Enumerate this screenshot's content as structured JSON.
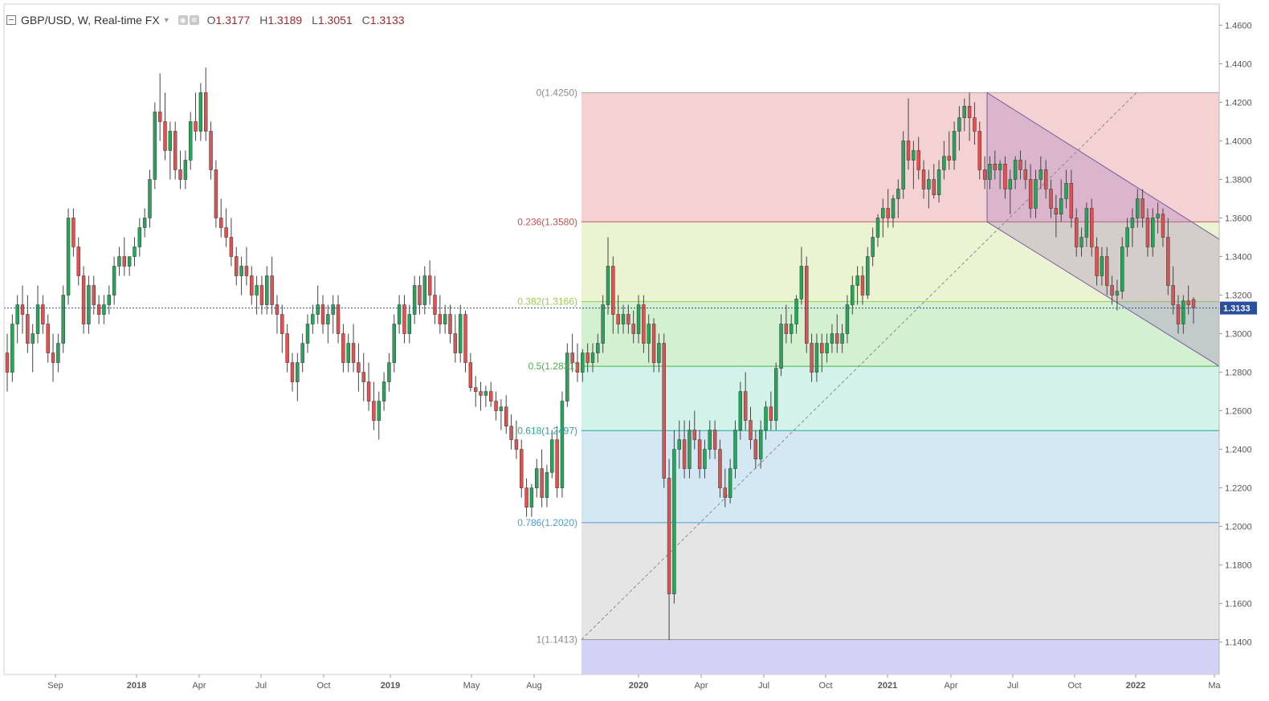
{
  "header": {
    "symbol": "GBP/USD, W, Real-time FX",
    "open_label": "O",
    "open": "1.3177",
    "high_label": "H",
    "high": "1.3189",
    "low_label": "L",
    "low": "1.3051",
    "close_label": "C",
    "close": "1.3133"
  },
  "chart_data": {
    "type": "candlestick",
    "instrument": "GBP/USD",
    "timeframe": "W",
    "ylim": [
      1.1232,
      1.471
    ],
    "y_ticks": [
      "1.4600",
      "1.4400",
      "1.4200",
      "1.4000",
      "1.3800",
      "1.3600",
      "1.3400",
      "1.3200",
      "1.3000",
      "1.2800",
      "1.2600",
      "1.2400",
      "1.2200",
      "1.2000",
      "1.1800",
      "1.1600",
      "1.1400"
    ],
    "x_ticks": [
      "Sep",
      "2018",
      "Apr",
      "Jul",
      "Oct",
      "2019",
      "May",
      "Aug",
      "2020",
      "Apr",
      "Jul",
      "Oct",
      "2021",
      "Apr",
      "Jul",
      "Oct",
      "2022",
      "Ma"
    ],
    "last_price": "1.3133",
    "candles": [
      [
        1.29,
        1.3,
        1.27,
        1.28
      ],
      [
        1.28,
        1.31,
        1.275,
        1.305
      ],
      [
        1.305,
        1.32,
        1.295,
        1.315
      ],
      [
        1.315,
        1.325,
        1.3,
        1.31
      ],
      [
        1.31,
        1.32,
        1.29,
        1.295
      ],
      [
        1.295,
        1.305,
        1.28,
        1.3
      ],
      [
        1.3,
        1.325,
        1.295,
        1.315
      ],
      [
        1.315,
        1.32,
        1.3,
        1.305
      ],
      [
        1.305,
        1.31,
        1.285,
        1.29
      ],
      [
        1.29,
        1.3,
        1.275,
        1.285
      ],
      [
        1.285,
        1.3,
        1.28,
        1.295
      ],
      [
        1.295,
        1.325,
        1.29,
        1.32
      ],
      [
        1.32,
        1.365,
        1.315,
        1.36
      ],
      [
        1.36,
        1.365,
        1.34,
        1.345
      ],
      [
        1.345,
        1.35,
        1.325,
        1.33
      ],
      [
        1.33,
        1.335,
        1.3,
        1.305
      ],
      [
        1.305,
        1.33,
        1.3,
        1.325
      ],
      [
        1.325,
        1.33,
        1.31,
        1.315
      ],
      [
        1.315,
        1.32,
        1.305,
        1.31
      ],
      [
        1.31,
        1.32,
        1.305,
        1.315
      ],
      [
        1.315,
        1.325,
        1.31,
        1.32
      ],
      [
        1.32,
        1.34,
        1.315,
        1.335
      ],
      [
        1.335,
        1.345,
        1.33,
        1.34
      ],
      [
        1.34,
        1.35,
        1.33,
        1.335
      ],
      [
        1.335,
        1.34,
        1.33,
        1.34
      ],
      [
        1.34,
        1.35,
        1.335,
        1.345
      ],
      [
        1.345,
        1.36,
        1.34,
        1.355
      ],
      [
        1.355,
        1.365,
        1.35,
        1.36
      ],
      [
        1.36,
        1.385,
        1.355,
        1.38
      ],
      [
        1.38,
        1.42,
        1.375,
        1.415
      ],
      [
        1.415,
        1.435,
        1.4,
        1.41
      ],
      [
        1.41,
        1.425,
        1.39,
        1.395
      ],
      [
        1.395,
        1.41,
        1.38,
        1.405
      ],
      [
        1.405,
        1.41,
        1.38,
        1.385
      ],
      [
        1.385,
        1.395,
        1.375,
        1.38
      ],
      [
        1.38,
        1.395,
        1.375,
        1.39
      ],
      [
        1.39,
        1.415,
        1.385,
        1.41
      ],
      [
        1.41,
        1.425,
        1.4,
        1.405
      ],
      [
        1.405,
        1.43,
        1.4,
        1.425
      ],
      [
        1.425,
        1.438,
        1.4,
        1.405
      ],
      [
        1.405,
        1.41,
        1.38,
        1.385
      ],
      [
        1.385,
        1.39,
        1.355,
        1.36
      ],
      [
        1.36,
        1.37,
        1.35,
        1.355
      ],
      [
        1.355,
        1.365,
        1.345,
        1.35
      ],
      [
        1.35,
        1.36,
        1.335,
        1.34
      ],
      [
        1.34,
        1.345,
        1.325,
        1.33
      ],
      [
        1.33,
        1.34,
        1.32,
        1.335
      ],
      [
        1.335,
        1.345,
        1.325,
        1.33
      ],
      [
        1.33,
        1.335,
        1.315,
        1.32
      ],
      [
        1.32,
        1.33,
        1.31,
        1.325
      ],
      [
        1.325,
        1.33,
        1.31,
        1.315
      ],
      [
        1.315,
        1.335,
        1.31,
        1.33
      ],
      [
        1.33,
        1.34,
        1.31,
        1.315
      ],
      [
        1.315,
        1.32,
        1.3,
        1.31
      ],
      [
        1.31,
        1.315,
        1.29,
        1.3
      ],
      [
        1.3,
        1.305,
        1.28,
        1.285
      ],
      [
        1.285,
        1.29,
        1.27,
        1.275
      ],
      [
        1.275,
        1.29,
        1.265,
        1.285
      ],
      [
        1.285,
        1.3,
        1.28,
        1.295
      ],
      [
        1.295,
        1.31,
        1.29,
        1.305
      ],
      [
        1.305,
        1.315,
        1.3,
        1.31
      ],
      [
        1.31,
        1.325,
        1.305,
        1.315
      ],
      [
        1.315,
        1.32,
        1.3,
        1.305
      ],
      [
        1.305,
        1.315,
        1.295,
        1.31
      ],
      [
        1.31,
        1.32,
        1.3,
        1.315
      ],
      [
        1.315,
        1.32,
        1.295,
        1.3
      ],
      [
        1.3,
        1.305,
        1.28,
        1.285
      ],
      [
        1.285,
        1.3,
        1.28,
        1.295
      ],
      [
        1.295,
        1.305,
        1.28,
        1.285
      ],
      [
        1.285,
        1.295,
        1.27,
        1.28
      ],
      [
        1.28,
        1.29,
        1.265,
        1.275
      ],
      [
        1.275,
        1.285,
        1.26,
        1.265
      ],
      [
        1.265,
        1.275,
        1.25,
        1.255
      ],
      [
        1.255,
        1.27,
        1.245,
        1.265
      ],
      [
        1.265,
        1.28,
        1.26,
        1.275
      ],
      [
        1.275,
        1.29,
        1.27,
        1.285
      ],
      [
        1.285,
        1.31,
        1.28,
        1.305
      ],
      [
        1.305,
        1.32,
        1.3,
        1.315
      ],
      [
        1.315,
        1.32,
        1.295,
        1.3
      ],
      [
        1.3,
        1.315,
        1.295,
        1.31
      ],
      [
        1.31,
        1.33,
        1.305,
        1.325
      ],
      [
        1.325,
        1.33,
        1.31,
        1.315
      ],
      [
        1.315,
        1.335,
        1.31,
        1.33
      ],
      [
        1.33,
        1.338,
        1.315,
        1.32
      ],
      [
        1.32,
        1.33,
        1.305,
        1.31
      ],
      [
        1.31,
        1.32,
        1.3,
        1.305
      ],
      [
        1.305,
        1.315,
        1.3,
        1.31
      ],
      [
        1.31,
        1.315,
        1.295,
        1.3
      ],
      [
        1.3,
        1.31,
        1.285,
        1.29
      ],
      [
        1.29,
        1.315,
        1.285,
        1.31
      ],
      [
        1.31,
        1.312,
        1.28,
        1.285
      ],
      [
        1.285,
        1.29,
        1.27,
        1.272
      ],
      [
        1.272,
        1.278,
        1.262,
        1.27
      ],
      [
        1.27,
        1.275,
        1.26,
        1.268
      ],
      [
        1.268,
        1.273,
        1.262,
        1.27
      ],
      [
        1.27,
        1.275,
        1.262,
        1.265
      ],
      [
        1.265,
        1.27,
        1.255,
        1.26
      ],
      [
        1.26,
        1.266,
        1.25,
        1.262
      ],
      [
        1.262,
        1.268,
        1.248,
        1.252
      ],
      [
        1.252,
        1.258,
        1.24,
        1.245
      ],
      [
        1.245,
        1.255,
        1.235,
        1.24
      ],
      [
        1.24,
        1.245,
        1.215,
        1.22
      ],
      [
        1.22,
        1.225,
        1.205,
        1.21
      ],
      [
        1.21,
        1.222,
        1.205,
        1.22
      ],
      [
        1.22,
        1.235,
        1.215,
        1.23
      ],
      [
        1.23,
        1.24,
        1.21,
        1.215
      ],
      [
        1.215,
        1.232,
        1.21,
        1.228
      ],
      [
        1.228,
        1.25,
        1.225,
        1.245
      ],
      [
        1.245,
        1.252,
        1.215,
        1.22
      ],
      [
        1.22,
        1.27,
        1.215,
        1.265
      ],
      [
        1.265,
        1.295,
        1.262,
        1.29
      ],
      [
        1.29,
        1.3,
        1.28,
        1.285
      ],
      [
        1.285,
        1.295,
        1.275,
        1.28
      ],
      [
        1.28,
        1.292,
        1.275,
        1.29
      ],
      [
        1.29,
        1.295,
        1.28,
        1.285
      ],
      [
        1.285,
        1.295,
        1.28,
        1.29
      ],
      [
        1.29,
        1.3,
        1.285,
        1.295
      ],
      [
        1.295,
        1.32,
        1.29,
        1.315
      ],
      [
        1.315,
        1.35,
        1.31,
        1.335
      ],
      [
        1.335,
        1.34,
        1.3,
        1.31
      ],
      [
        1.31,
        1.32,
        1.3,
        1.305
      ],
      [
        1.305,
        1.315,
        1.3,
        1.31
      ],
      [
        1.31,
        1.315,
        1.3,
        1.305
      ],
      [
        1.305,
        1.312,
        1.295,
        1.3
      ],
      [
        1.3,
        1.32,
        1.295,
        1.315
      ],
      [
        1.315,
        1.32,
        1.29,
        1.295
      ],
      [
        1.295,
        1.31,
        1.285,
        1.305
      ],
      [
        1.305,
        1.308,
        1.28,
        1.285
      ],
      [
        1.285,
        1.3,
        1.28,
        1.295
      ],
      [
        1.295,
        1.3,
        1.22,
        1.225
      ],
      [
        1.225,
        1.235,
        1.141,
        1.165
      ],
      [
        1.165,
        1.25,
        1.16,
        1.24
      ],
      [
        1.24,
        1.255,
        1.23,
        1.245
      ],
      [
        1.245,
        1.255,
        1.225,
        1.23
      ],
      [
        1.23,
        1.255,
        1.225,
        1.25
      ],
      [
        1.25,
        1.26,
        1.24,
        1.245
      ],
      [
        1.245,
        1.25,
        1.225,
        1.23
      ],
      [
        1.23,
        1.245,
        1.225,
        1.24
      ],
      [
        1.24,
        1.255,
        1.235,
        1.25
      ],
      [
        1.25,
        1.255,
        1.235,
        1.24
      ],
      [
        1.24,
        1.245,
        1.215,
        1.22
      ],
      [
        1.22,
        1.23,
        1.21,
        1.215
      ],
      [
        1.215,
        1.235,
        1.212,
        1.23
      ],
      [
        1.23,
        1.255,
        1.225,
        1.25
      ],
      [
        1.25,
        1.275,
        1.245,
        1.27
      ],
      [
        1.27,
        1.28,
        1.25,
        1.255
      ],
      [
        1.255,
        1.262,
        1.24,
        1.245
      ],
      [
        1.245,
        1.25,
        1.23,
        1.235
      ],
      [
        1.235,
        1.255,
        1.23,
        1.25
      ],
      [
        1.25,
        1.265,
        1.245,
        1.262
      ],
      [
        1.262,
        1.27,
        1.25,
        1.255
      ],
      [
        1.255,
        1.285,
        1.25,
        1.282
      ],
      [
        1.282,
        1.31,
        1.278,
        1.305
      ],
      [
        1.305,
        1.315,
        1.295,
        1.3
      ],
      [
        1.3,
        1.31,
        1.295,
        1.305
      ],
      [
        1.305,
        1.32,
        1.3,
        1.318
      ],
      [
        1.318,
        1.345,
        1.315,
        1.335
      ],
      [
        1.335,
        1.34,
        1.29,
        1.295
      ],
      [
        1.295,
        1.3,
        1.275,
        1.28
      ],
      [
        1.28,
        1.3,
        1.275,
        1.295
      ],
      [
        1.295,
        1.3,
        1.28,
        1.29
      ],
      [
        1.29,
        1.3,
        1.285,
        1.295
      ],
      [
        1.295,
        1.305,
        1.29,
        1.3
      ],
      [
        1.3,
        1.31,
        1.29,
        1.295
      ],
      [
        1.295,
        1.305,
        1.29,
        1.3
      ],
      [
        1.3,
        1.32,
        1.295,
        1.315
      ],
      [
        1.315,
        1.33,
        1.31,
        1.325
      ],
      [
        1.325,
        1.335,
        1.315,
        1.33
      ],
      [
        1.33,
        1.335,
        1.315,
        1.32
      ],
      [
        1.32,
        1.345,
        1.318,
        1.34
      ],
      [
        1.34,
        1.355,
        1.335,
        1.35
      ],
      [
        1.35,
        1.362,
        1.345,
        1.36
      ],
      [
        1.36,
        1.37,
        1.35,
        1.365
      ],
      [
        1.365,
        1.375,
        1.355,
        1.36
      ],
      [
        1.36,
        1.372,
        1.355,
        1.37
      ],
      [
        1.37,
        1.38,
        1.36,
        1.375
      ],
      [
        1.375,
        1.405,
        1.37,
        1.4
      ],
      [
        1.4,
        1.422,
        1.385,
        1.39
      ],
      [
        1.39,
        1.4,
        1.375,
        1.395
      ],
      [
        1.395,
        1.402,
        1.38,
        1.385
      ],
      [
        1.385,
        1.39,
        1.37,
        1.375
      ],
      [
        1.375,
        1.385,
        1.365,
        1.38
      ],
      [
        1.38,
        1.388,
        1.37,
        1.372
      ],
      [
        1.372,
        1.39,
        1.368,
        1.385
      ],
      [
        1.385,
        1.4,
        1.38,
        1.392
      ],
      [
        1.392,
        1.405,
        1.385,
        1.39
      ],
      [
        1.39,
        1.41,
        1.385,
        1.405
      ],
      [
        1.405,
        1.418,
        1.395,
        1.412
      ],
      [
        1.412,
        1.422,
        1.405,
        1.418
      ],
      [
        1.418,
        1.425,
        1.4,
        1.412
      ],
      [
        1.412,
        1.42,
        1.398,
        1.405
      ],
      [
        1.405,
        1.41,
        1.38,
        1.385
      ],
      [
        1.385,
        1.392,
        1.375,
        1.38
      ],
      [
        1.38,
        1.392,
        1.375,
        1.388
      ],
      [
        1.388,
        1.395,
        1.38,
        1.385
      ],
      [
        1.385,
        1.39,
        1.375,
        1.388
      ],
      [
        1.388,
        1.392,
        1.37,
        1.375
      ],
      [
        1.375,
        1.385,
        1.362,
        1.38
      ],
      [
        1.38,
        1.392,
        1.375,
        1.39
      ],
      [
        1.39,
        1.395,
        1.38,
        1.385
      ],
      [
        1.385,
        1.39,
        1.375,
        1.38
      ],
      [
        1.38,
        1.388,
        1.36,
        1.365
      ],
      [
        1.365,
        1.385,
        1.36,
        1.38
      ],
      [
        1.38,
        1.392,
        1.375,
        1.385
      ],
      [
        1.385,
        1.39,
        1.37,
        1.375
      ],
      [
        1.375,
        1.38,
        1.36,
        1.365
      ],
      [
        1.365,
        1.372,
        1.35,
        1.362
      ],
      [
        1.362,
        1.38,
        1.358,
        1.37
      ],
      [
        1.37,
        1.385,
        1.365,
        1.378
      ],
      [
        1.378,
        1.385,
        1.355,
        1.36
      ],
      [
        1.36,
        1.365,
        1.34,
        1.345
      ],
      [
        1.345,
        1.355,
        1.34,
        1.35
      ],
      [
        1.35,
        1.368,
        1.345,
        1.365
      ],
      [
        1.365,
        1.37,
        1.34,
        1.345
      ],
      [
        1.345,
        1.35,
        1.325,
        1.33
      ],
      [
        1.33,
        1.345,
        1.325,
        1.34
      ],
      [
        1.34,
        1.345,
        1.32,
        1.325
      ],
      [
        1.325,
        1.33,
        1.315,
        1.32
      ],
      [
        1.32,
        1.328,
        1.312,
        1.322
      ],
      [
        1.322,
        1.35,
        1.318,
        1.345
      ],
      [
        1.345,
        1.36,
        1.34,
        1.355
      ],
      [
        1.355,
        1.365,
        1.345,
        1.36
      ],
      [
        1.36,
        1.375,
        1.355,
        1.37
      ],
      [
        1.37,
        1.375,
        1.355,
        1.36
      ],
      [
        1.36,
        1.365,
        1.34,
        1.345
      ],
      [
        1.345,
        1.365,
        1.34,
        1.36
      ],
      [
        1.36,
        1.368,
        1.352,
        1.362
      ],
      [
        1.362,
        1.365,
        1.345,
        1.35
      ],
      [
        1.35,
        1.36,
        1.32,
        1.325
      ],
      [
        1.325,
        1.335,
        1.31,
        1.315
      ],
      [
        1.315,
        1.32,
        1.3,
        1.305
      ],
      [
        1.305,
        1.32,
        1.3,
        1.317
      ],
      [
        1.317,
        1.325,
        1.31,
        1.315
      ],
      [
        1.3177,
        1.3189,
        1.3051,
        1.3133
      ]
    ],
    "fib_levels": [
      {
        "label": "0(1.4250)",
        "value": 1.425,
        "line": "#a7a7a7",
        "fill": "#f4d2d3",
        "text": "#8a8a8a"
      },
      {
        "label": "0.236(1.3580)",
        "value": 1.358,
        "line": "#c05a5a",
        "fill": "#ebf4d2",
        "text": "#c45252"
      },
      {
        "label": "0.382(1.3166)",
        "value": 1.3166,
        "line": "#9ccb4c",
        "fill": "#d3f0d0",
        "text": "#9ccb4c"
      },
      {
        "label": "0.5(1.2831)",
        "value": 1.2831,
        "line": "#4caf50",
        "fill": "#d3f3ea",
        "text": "#4caf50"
      },
      {
        "label": "0.618(1.2497)",
        "value": 1.2497,
        "line": "#26a69a",
        "fill": "#d3e8f3",
        "text": "#26a69a"
      },
      {
        "label": "0.786(1.2020)",
        "value": 1.202,
        "line": "#4a9fd0",
        "fill": "#e5e5e5",
        "text": "#4a9fd0"
      },
      {
        "label": "1(1.1413)",
        "value": 1.1413,
        "line": "#9a9a9a",
        "fill": "#d2d2f4",
        "text": "#8a8a8a"
      }
    ],
    "colors": {
      "up_body": "#26a65b",
      "down_body": "#e05252",
      "wick": "#444444",
      "price_line": "#2a4f9e",
      "price_tag_bg": "#2a4f9e",
      "price_tag_text": "#ffffff",
      "channel_fill": "#9b6dbb",
      "channel_stroke": "#7a5aa0",
      "axis_text": "#555555",
      "grid_border": "#cccccc"
    }
  }
}
